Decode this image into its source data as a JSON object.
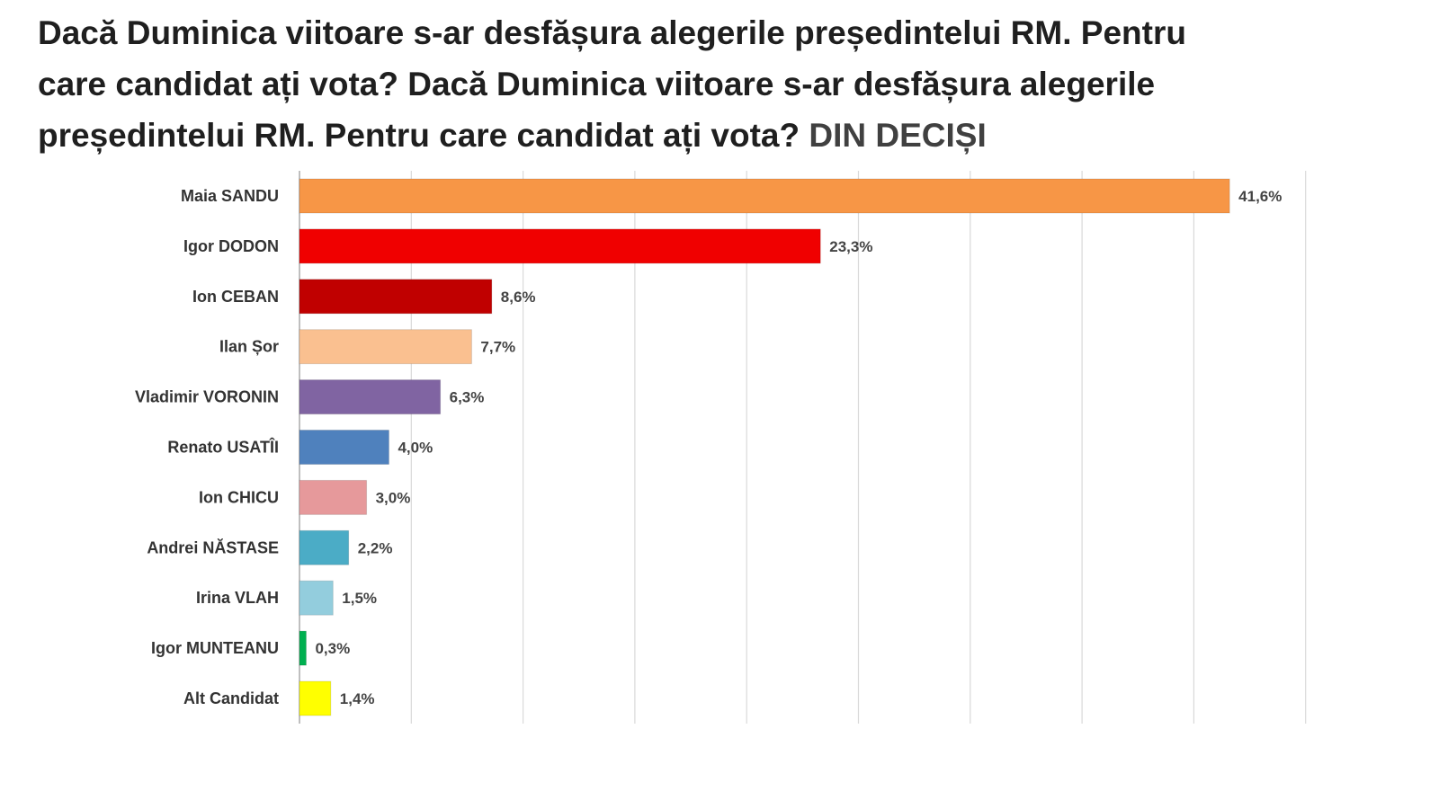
{
  "title": {
    "main": "Dacă Duminica viitoare s-ar desfășura alegerile președintelui RM. Pentru care candidat ați vota? Dacă Duminica viitoare s-ar desfășura alegerile președintelui RM. Pentru care candidat ați vota?",
    "suffix": "DIN DECIȘI"
  },
  "chart_data": {
    "type": "bar",
    "orientation": "horizontal",
    "title": "Dacă Duminica viitoare s-ar desfășura alegerile președintelui RM. Pentru care candidat ați vota? DIN DECIȘI",
    "xlabel": "",
    "ylabel": "",
    "xlim": [
      0,
      45
    ],
    "grid": true,
    "legend": "none",
    "categories": [
      "Maia SANDU",
      "Igor DODON",
      "Ion CEBAN",
      "Ilan Șor",
      "Vladimir VORONIN",
      "Renato USATÎI",
      "Ion CHICU",
      "Andrei NĂSTASE",
      "Irina VLAH",
      "Igor MUNTEANU",
      "Alt Candidat"
    ],
    "values": [
      41.6,
      23.3,
      8.6,
      7.7,
      6.3,
      4.0,
      3.0,
      2.2,
      1.5,
      0.3,
      1.4
    ],
    "value_labels": [
      "41,6%",
      "23,3%",
      "8,6%",
      "7,7%",
      "6,3%",
      "4,0%",
      "3,0%",
      "2,2%",
      "1,5%",
      "0,3%",
      "1,4%"
    ],
    "colors": [
      "#F79646",
      "#F00000",
      "#C00000",
      "#FAC090",
      "#8064A2",
      "#4F81BD",
      "#E6999B",
      "#4BACC6",
      "#93CDDD",
      "#00B050",
      "#FFFF00"
    ]
  }
}
